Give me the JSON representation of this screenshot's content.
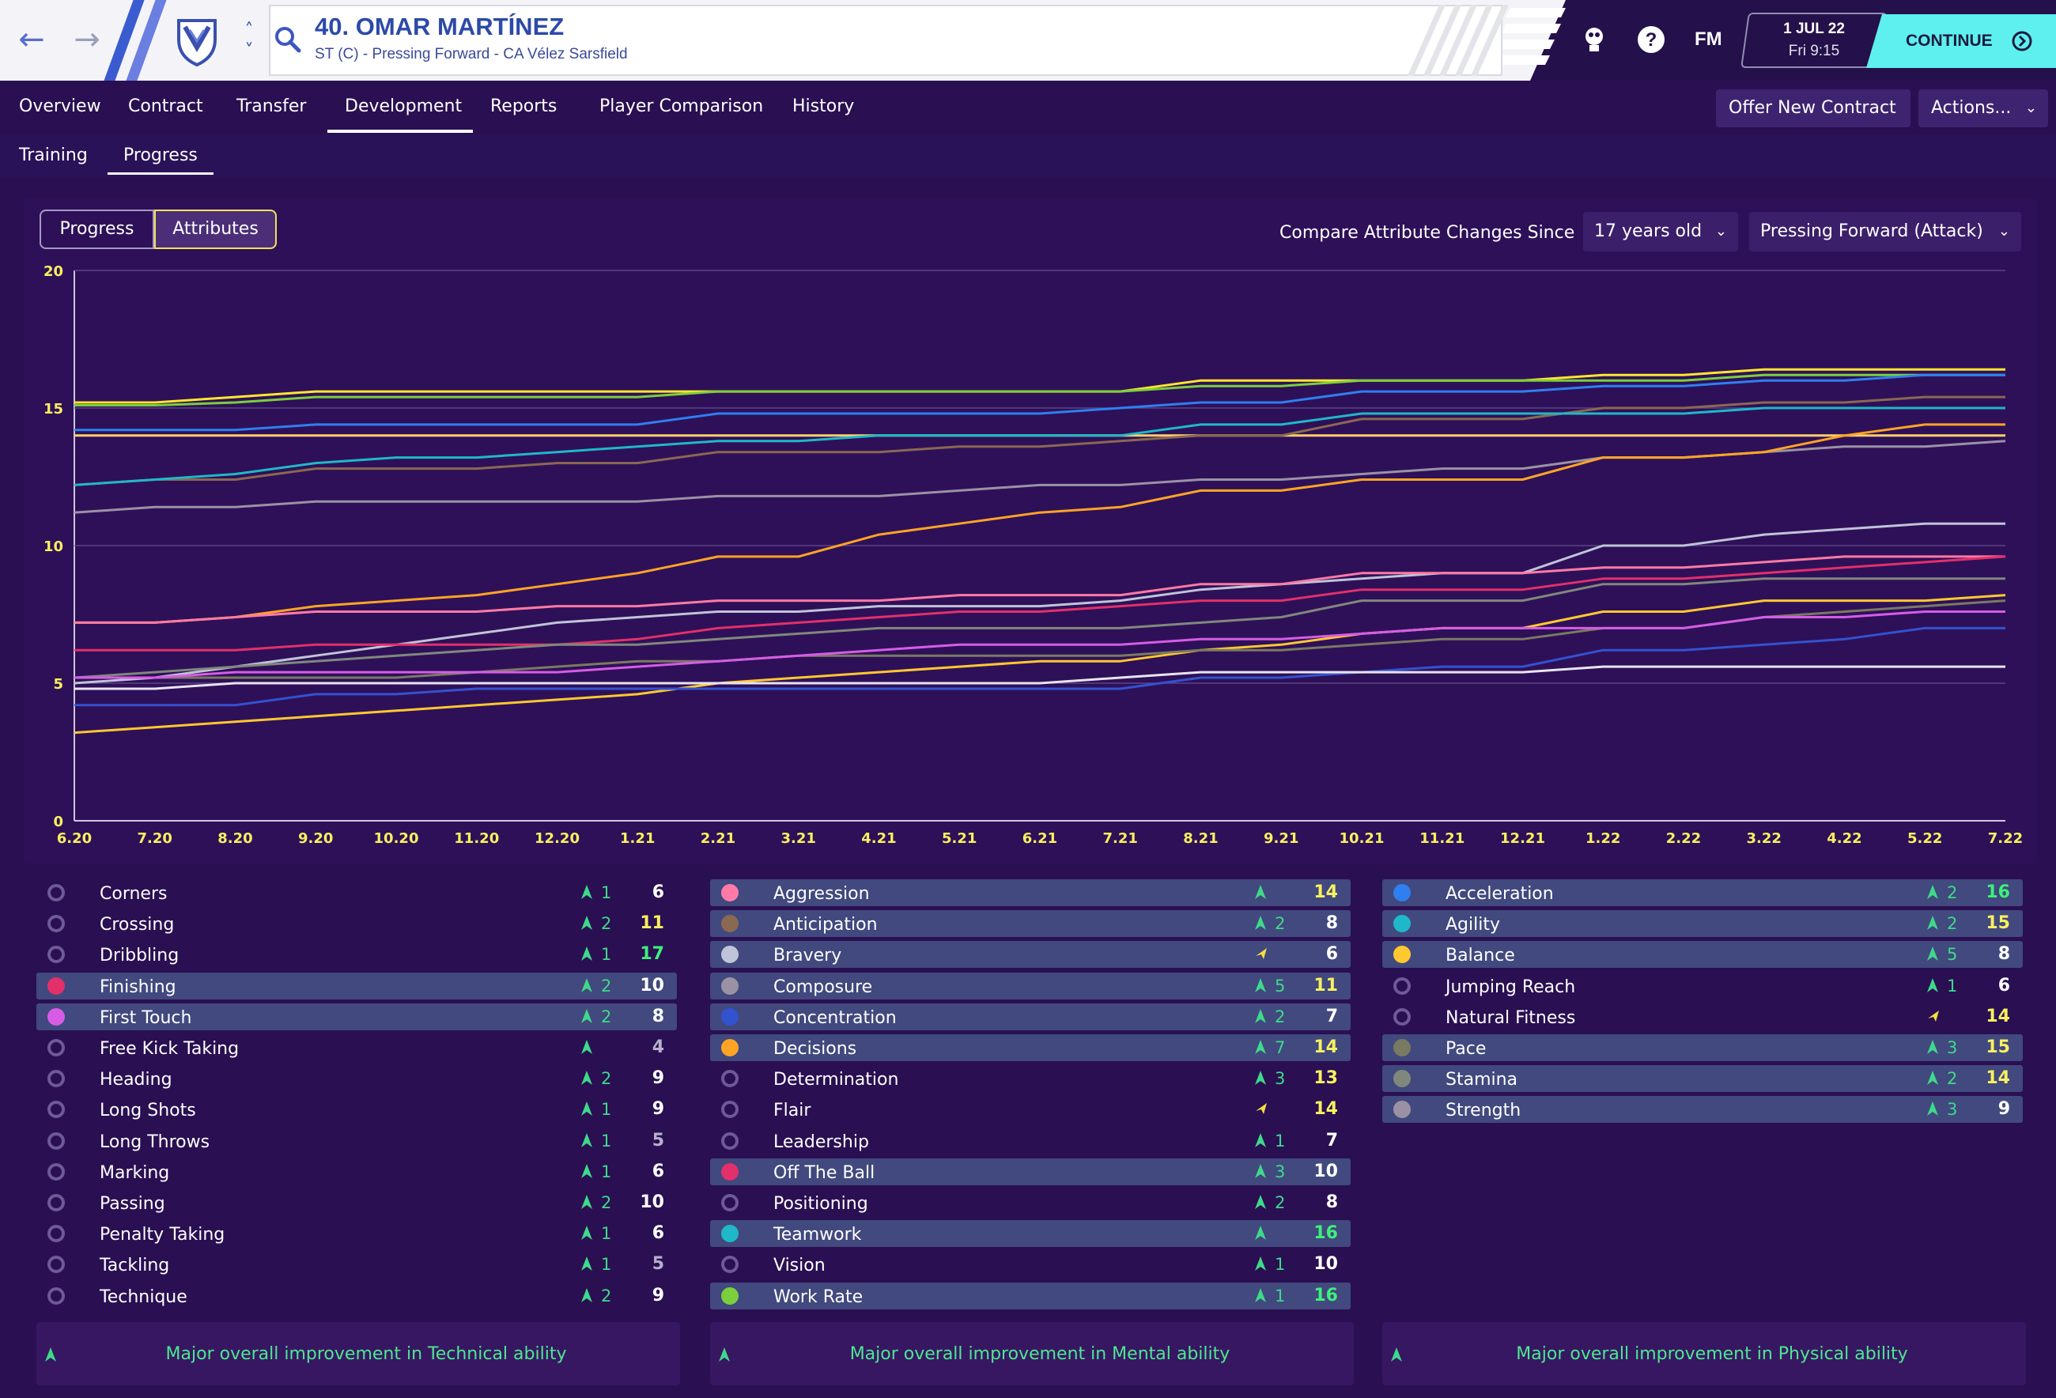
{
  "header": {
    "player_name": "40. OMAR MARTÍNEZ",
    "player_subtitle": "ST (C) - Pressing Forward - CA Vélez Sarsfield",
    "logo_text": "FM",
    "date_line1": "1 JUL 22",
    "date_line2": "Fri 9:15",
    "continue_label": "CONTINUE"
  },
  "tabs": {
    "overview": "Overview",
    "contract": "Contract",
    "transfer": "Transfer",
    "development": "Development",
    "reports": "Reports",
    "comparison": "Player Comparison",
    "history": "History",
    "offer_button": "Offer New Contract",
    "actions_button": "Actions..."
  },
  "subtabs": {
    "training": "Training",
    "progress": "Progress"
  },
  "chart_controls": {
    "toggle_progress": "Progress",
    "toggle_attributes": "Attributes",
    "compare_label": "Compare Attribute Changes Since",
    "age_select": "17 years old",
    "role_select": "Pressing Forward (Attack)"
  },
  "chart_data": {
    "type": "line",
    "ylim": [
      0,
      20
    ],
    "yticks": [
      "0",
      "5",
      "10",
      "15",
      "20"
    ],
    "x": [
      "6.20",
      "7.20",
      "8.20",
      "9.20",
      "10.20",
      "11.20",
      "12.20",
      "1.21",
      "2.21",
      "3.21",
      "4.21",
      "5.21",
      "6.21",
      "7.21",
      "8.21",
      "9.21",
      "10.21",
      "11.21",
      "12.21",
      "1.22",
      "2.22",
      "3.22",
      "4.22",
      "5.22",
      "7.22"
    ],
    "series": [
      {
        "color": "#ffe62e",
        "values": [
          15.2,
          15.2,
          15.4,
          15.6,
          15.6,
          15.6,
          15.6,
          15.6,
          15.6,
          15.6,
          15.6,
          15.6,
          15.6,
          15.6,
          16,
          16,
          16,
          16,
          16,
          16.2,
          16.2,
          16.4,
          16.4,
          16.4,
          16.4
        ]
      },
      {
        "color": "#7bcf3c",
        "values": [
          15.1,
          15.1,
          15.2,
          15.4,
          15.4,
          15.4,
          15.4,
          15.4,
          15.6,
          15.6,
          15.6,
          15.6,
          15.6,
          15.6,
          15.8,
          15.8,
          16,
          16,
          16,
          16,
          16,
          16.2,
          16.2,
          16.2,
          16.2
        ]
      },
      {
        "color": "#2f7ff0",
        "values": [
          14.2,
          14.2,
          14.2,
          14.4,
          14.4,
          14.4,
          14.4,
          14.4,
          14.8,
          14.8,
          14.8,
          14.8,
          14.8,
          15,
          15.2,
          15.2,
          15.6,
          15.6,
          15.6,
          15.8,
          15.8,
          16,
          16,
          16.2,
          16.2
        ]
      },
      {
        "color": "#ffd06e",
        "values": [
          14,
          14,
          14,
          14,
          14,
          14,
          14,
          14,
          14,
          14,
          14,
          14,
          14,
          14,
          14,
          14,
          14,
          14,
          14,
          14,
          14,
          14,
          14,
          14,
          14
        ]
      },
      {
        "color": "#8a6852",
        "values": [
          12.2,
          12.4,
          12.4,
          12.8,
          12.8,
          12.8,
          13,
          13,
          13.4,
          13.4,
          13.4,
          13.6,
          13.6,
          13.8,
          14,
          14,
          14.6,
          14.6,
          14.6,
          15,
          15,
          15.2,
          15.2,
          15.4,
          15.4
        ]
      },
      {
        "color": "#1fb8c8",
        "values": [
          12.2,
          12.4,
          12.6,
          13,
          13.2,
          13.2,
          13.4,
          13.6,
          13.8,
          13.8,
          14,
          14,
          14,
          14,
          14.4,
          14.4,
          14.8,
          14.8,
          14.8,
          14.8,
          14.8,
          15,
          15,
          15,
          15
        ]
      },
      {
        "color": "#9a92a4",
        "values": [
          11.2,
          11.4,
          11.4,
          11.6,
          11.6,
          11.6,
          11.6,
          11.6,
          11.8,
          11.8,
          11.8,
          12,
          12.2,
          12.2,
          12.4,
          12.4,
          12.6,
          12.8,
          12.8,
          13.2,
          13.2,
          13.4,
          13.6,
          13.6,
          13.8
        ]
      },
      {
        "color": "#ffa424",
        "values": [
          7.2,
          7.2,
          7.4,
          7.8,
          8,
          8.2,
          8.6,
          9,
          9.6,
          9.6,
          10.4,
          10.8,
          11.2,
          11.4,
          12,
          12,
          12.4,
          12.4,
          12.4,
          13.2,
          13.2,
          13.4,
          14,
          14.4,
          14.4
        ]
      },
      {
        "color": "#c0c4d8",
        "values": [
          5,
          5.2,
          5.6,
          6,
          6.4,
          6.8,
          7.2,
          7.4,
          7.6,
          7.6,
          7.8,
          7.8,
          7.8,
          8,
          8.4,
          8.6,
          8.8,
          9,
          9,
          10,
          10,
          10.4,
          10.6,
          10.8,
          10.8
        ]
      },
      {
        "color": "#ff7aa6",
        "values": [
          7.2,
          7.2,
          7.4,
          7.6,
          7.6,
          7.6,
          7.8,
          7.8,
          8,
          8,
          8,
          8.2,
          8.2,
          8.2,
          8.6,
          8.6,
          9,
          9,
          9,
          9.2,
          9.2,
          9.4,
          9.6,
          9.6,
          9.6
        ]
      },
      {
        "color": "#e2306a",
        "values": [
          6.2,
          6.2,
          6.2,
          6.4,
          6.4,
          6.4,
          6.4,
          6.6,
          7,
          7.2,
          7.4,
          7.6,
          7.6,
          7.8,
          8,
          8,
          8.4,
          8.4,
          8.4,
          8.8,
          8.8,
          9,
          9.2,
          9.4,
          9.6
        ]
      },
      {
        "color": "#80887c",
        "values": [
          5.2,
          5.4,
          5.6,
          5.8,
          6,
          6.2,
          6.4,
          6.4,
          6.6,
          6.8,
          7,
          7,
          7,
          7,
          7.2,
          7.4,
          8,
          8,
          8,
          8.6,
          8.6,
          8.8,
          8.8,
          8.8,
          8.8
        ]
      },
      {
        "color": "#ffc830",
        "values": [
          3.2,
          3.4,
          3.6,
          3.8,
          4,
          4.2,
          4.4,
          4.6,
          5,
          5.2,
          5.4,
          5.6,
          5.8,
          5.8,
          6.2,
          6.4,
          6.8,
          7,
          7,
          7.6,
          7.6,
          8,
          8,
          8,
          8.2
        ]
      },
      {
        "color": "#7a7a62",
        "values": [
          5.2,
          5.2,
          5.2,
          5.2,
          5.2,
          5.4,
          5.6,
          5.8,
          5.8,
          6,
          6,
          6,
          6,
          6,
          6.2,
          6.2,
          6.4,
          6.6,
          6.6,
          7,
          7,
          7.4,
          7.6,
          7.8,
          8
        ]
      },
      {
        "color": "#d65ce6",
        "values": [
          5.2,
          5.2,
          5.4,
          5.4,
          5.4,
          5.4,
          5.4,
          5.6,
          5.8,
          6,
          6.2,
          6.4,
          6.4,
          6.4,
          6.6,
          6.6,
          6.8,
          7,
          7,
          7,
          7,
          7.4,
          7.4,
          7.6,
          7.6
        ]
      },
      {
        "color": "#3352d0",
        "values": [
          4.2,
          4.2,
          4.2,
          4.6,
          4.6,
          4.8,
          4.8,
          4.8,
          4.8,
          4.8,
          4.8,
          4.8,
          4.8,
          4.8,
          5.2,
          5.2,
          5.4,
          5.6,
          5.6,
          6.2,
          6.2,
          6.4,
          6.6,
          7,
          7
        ]
      },
      {
        "color": "#e8e4f0",
        "values": [
          4.8,
          4.8,
          5,
          5,
          5,
          5,
          5,
          5,
          5,
          5,
          5,
          5,
          5,
          5.2,
          5.4,
          5.4,
          5.4,
          5.4,
          5.4,
          5.6,
          5.6,
          5.6,
          5.6,
          5.6,
          5.6
        ]
      }
    ]
  },
  "technical": [
    {
      "label": "Corners",
      "delta": "1",
      "value": "6"
    },
    {
      "label": "Crossing",
      "delta": "2",
      "value": "11"
    },
    {
      "label": "Dribbling",
      "delta": "1",
      "value": "17"
    },
    {
      "label": "Finishing",
      "delta": "2",
      "value": "10"
    },
    {
      "label": "First Touch",
      "delta": "2",
      "value": "8"
    },
    {
      "label": "Free Kick Taking",
      "delta": "",
      "value": "4"
    },
    {
      "label": "Heading",
      "delta": "2",
      "value": "9"
    },
    {
      "label": "Long Shots",
      "delta": "1",
      "value": "9"
    },
    {
      "label": "Long Throws",
      "delta": "1",
      "value": "5"
    },
    {
      "label": "Marking",
      "delta": "1",
      "value": "6"
    },
    {
      "label": "Passing",
      "delta": "2",
      "value": "10"
    },
    {
      "label": "Penalty Taking",
      "delta": "1",
      "value": "6"
    },
    {
      "label": "Tackling",
      "delta": "1",
      "value": "5"
    },
    {
      "label": "Technique",
      "delta": "2",
      "value": "9"
    }
  ],
  "mental": [
    {
      "label": "Aggression",
      "delta": "",
      "value": "14"
    },
    {
      "label": "Anticipation",
      "delta": "2",
      "value": "8"
    },
    {
      "label": "Bravery",
      "delta": "",
      "value": "6"
    },
    {
      "label": "Composure",
      "delta": "5",
      "value": "11"
    },
    {
      "label": "Concentration",
      "delta": "2",
      "value": "7"
    },
    {
      "label": "Decisions",
      "delta": "7",
      "value": "14"
    },
    {
      "label": "Determination",
      "delta": "3",
      "value": "13"
    },
    {
      "label": "Flair",
      "delta": "",
      "value": "14"
    },
    {
      "label": "Leadership",
      "delta": "1",
      "value": "7"
    },
    {
      "label": "Off The Ball",
      "delta": "3",
      "value": "10"
    },
    {
      "label": "Positioning",
      "delta": "2",
      "value": "8"
    },
    {
      "label": "Teamwork",
      "delta": "",
      "value": "16"
    },
    {
      "label": "Vision",
      "delta": "1",
      "value": "10"
    },
    {
      "label": "Work Rate",
      "delta": "1",
      "value": "16"
    }
  ],
  "physical": [
    {
      "label": "Acceleration",
      "delta": "2",
      "value": "16"
    },
    {
      "label": "Agility",
      "delta": "2",
      "value": "15"
    },
    {
      "label": "Balance",
      "delta": "5",
      "value": "8"
    },
    {
      "label": "Jumping Reach",
      "delta": "1",
      "value": "6"
    },
    {
      "label": "Natural Fitness",
      "delta": "",
      "value": "14"
    },
    {
      "label": "Pace",
      "delta": "3",
      "value": "15"
    },
    {
      "label": "Stamina",
      "delta": "2",
      "value": "14"
    },
    {
      "label": "Strength",
      "delta": "3",
      "value": "9"
    }
  ],
  "summary": {
    "technical": "Major overall improvement in Technical ability",
    "mental": "Major overall improvement in Mental ability",
    "physical": "Major overall improvement in Physical ability"
  }
}
